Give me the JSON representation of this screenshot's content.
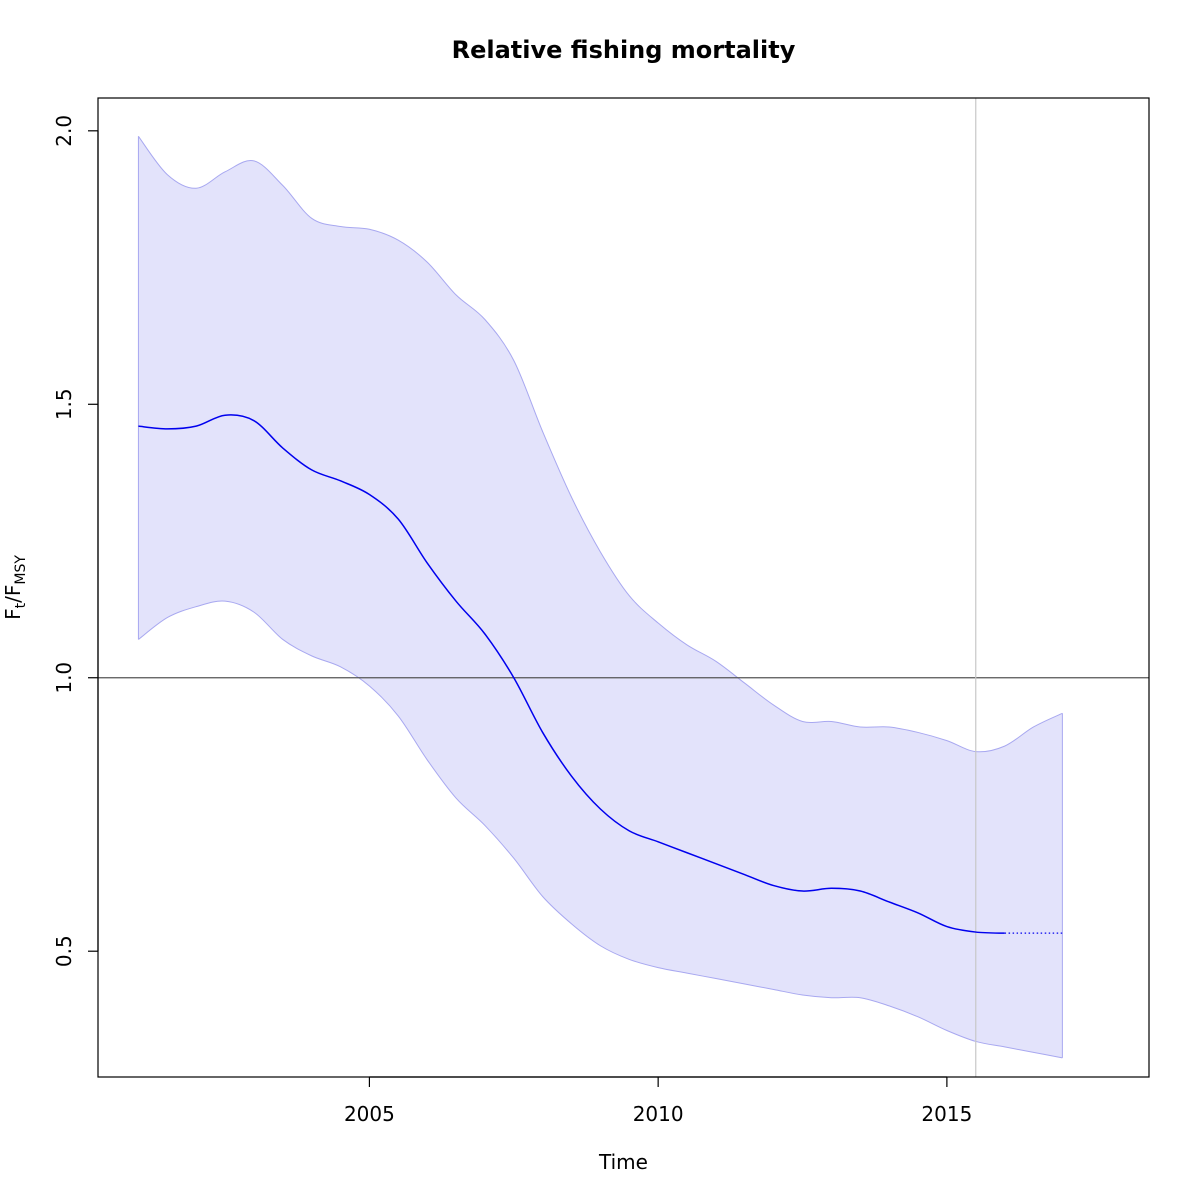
{
  "chart_data": {
    "type": "line",
    "title": "Relative fishing mortality",
    "xlabel": "Time",
    "ylabel": {
      "main": "F",
      "sub1": "t",
      "slash": "/F",
      "sub2": "MSY"
    },
    "xlim": [
      2000.3,
      2018.5
    ],
    "ylim": [
      0.27,
      2.06
    ],
    "x_ticks": [
      2005,
      2010,
      2015
    ],
    "x_tick_labels": [
      "2005",
      "2010",
      "2015"
    ],
    "y_ticks": [
      0.5,
      1.0,
      1.5,
      2.0
    ],
    "y_tick_labels": [
      "0.5",
      "1.0",
      "1.5",
      "2.0"
    ],
    "reference_line_y": 1.0,
    "vertical_line_x": 2015.5,
    "grid": false,
    "colors": {
      "line": "#0000ee",
      "band_fill": "#e3e3fb",
      "band_edge": "#a8a8f0",
      "reference_line": "#555555",
      "vertical_line": "#c8c8c8",
      "frame": "#000000"
    },
    "series": [
      {
        "role": "estimate",
        "line_style": "solid",
        "x": [
          2001.0,
          2001.5,
          2002.0,
          2002.5,
          2003.0,
          2003.5,
          2004.0,
          2004.5,
          2005.0,
          2005.5,
          2006.0,
          2006.5,
          2007.0,
          2007.5,
          2008.0,
          2008.5,
          2009.0,
          2009.5,
          2010.0,
          2010.5,
          2011.0,
          2011.5,
          2012.0,
          2012.5,
          2013.0,
          2013.5,
          2014.0,
          2014.5,
          2015.0,
          2015.5,
          2016.0
        ],
        "y": [
          1.46,
          1.455,
          1.46,
          1.48,
          1.47,
          1.42,
          1.38,
          1.36,
          1.335,
          1.29,
          1.21,
          1.14,
          1.08,
          1.0,
          0.9,
          0.82,
          0.76,
          0.72,
          0.7,
          0.68,
          0.66,
          0.64,
          0.62,
          0.61,
          0.615,
          0.61,
          0.59,
          0.57,
          0.545,
          0.535,
          0.533
        ]
      },
      {
        "role": "prediction",
        "line_style": "dotted",
        "x": [
          2016.0,
          2017.0
        ],
        "y": [
          0.533,
          0.533
        ]
      },
      {
        "role": "upper",
        "x": [
          2001.0,
          2001.5,
          2002.0,
          2002.5,
          2003.0,
          2003.5,
          2004.0,
          2004.5,
          2005.0,
          2005.5,
          2006.0,
          2006.5,
          2007.0,
          2007.5,
          2008.0,
          2008.5,
          2009.0,
          2009.5,
          2010.0,
          2010.5,
          2011.0,
          2011.5,
          2012.0,
          2012.5,
          2013.0,
          2013.5,
          2014.0,
          2014.5,
          2015.0,
          2015.5,
          2016.0,
          2016.5,
          2017.0
        ],
        "y": [
          1.99,
          1.92,
          1.895,
          1.925,
          1.945,
          1.9,
          1.84,
          1.825,
          1.82,
          1.8,
          1.76,
          1.7,
          1.655,
          1.58,
          1.45,
          1.33,
          1.23,
          1.15,
          1.1,
          1.06,
          1.03,
          0.99,
          0.95,
          0.92,
          0.92,
          0.91,
          0.91,
          0.9,
          0.885,
          0.865,
          0.875,
          0.91,
          0.935
        ]
      },
      {
        "role": "lower",
        "x": [
          2001.0,
          2001.5,
          2002.0,
          2002.5,
          2003.0,
          2003.5,
          2004.0,
          2004.5,
          2005.0,
          2005.5,
          2006.0,
          2006.5,
          2007.0,
          2007.5,
          2008.0,
          2008.5,
          2009.0,
          2009.5,
          2010.0,
          2010.5,
          2011.0,
          2011.5,
          2012.0,
          2012.5,
          2013.0,
          2013.5,
          2014.0,
          2014.5,
          2015.0,
          2015.5,
          2016.0,
          2016.5,
          2017.0
        ],
        "y": [
          1.07,
          1.11,
          1.13,
          1.14,
          1.12,
          1.07,
          1.04,
          1.02,
          0.985,
          0.93,
          0.85,
          0.78,
          0.73,
          0.67,
          0.6,
          0.55,
          0.51,
          0.485,
          0.47,
          0.46,
          0.45,
          0.44,
          0.43,
          0.42,
          0.415,
          0.415,
          0.4,
          0.38,
          0.355,
          0.335,
          0.325,
          0.315,
          0.305
        ]
      }
    ]
  }
}
